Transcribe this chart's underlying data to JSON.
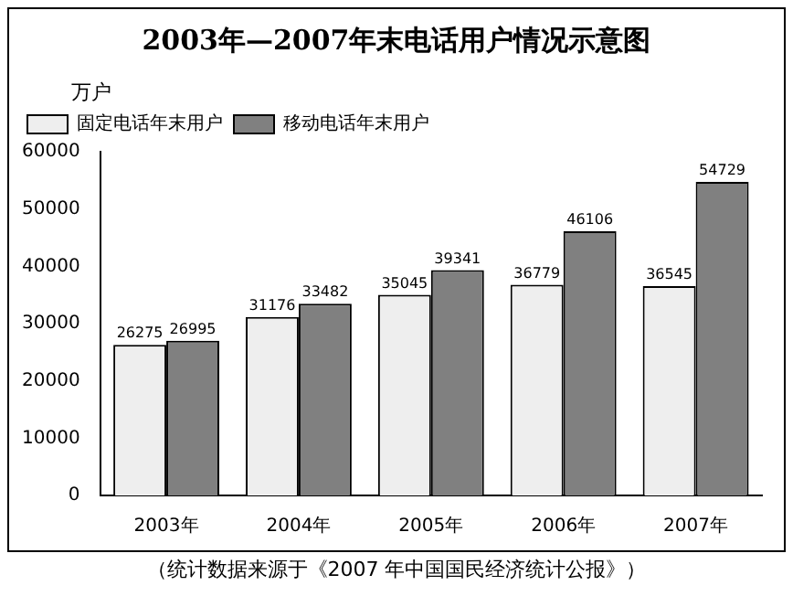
{
  "chart_data": {
    "type": "bar",
    "title": "2003年—2007年末电话用户情况示意图",
    "ylabel": "万户",
    "categories": [
      "2003年",
      "2004年",
      "2005年",
      "2006年",
      "2007年"
    ],
    "series": [
      {
        "name": "固定电话年末用户",
        "color": "#eeeeee",
        "values": [
          26275,
          31176,
          35045,
          36779,
          36545
        ]
      },
      {
        "name": "移动电话年末用户",
        "color": "#808080",
        "values": [
          26995,
          33482,
          39341,
          46106,
          54729
        ]
      }
    ],
    "ylim": [
      0,
      60000
    ],
    "yticks": [
      0,
      10000,
      20000,
      30000,
      40000,
      50000,
      60000
    ],
    "grid": false,
    "legend": "top left",
    "data_labels": true,
    "annotations": [
      "（统计数据来源于《2007 年中国国民经济统计公报》）"
    ]
  }
}
